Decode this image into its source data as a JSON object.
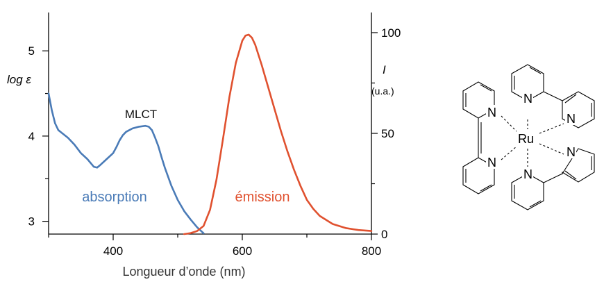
{
  "chart_data": {
    "type": "line",
    "title": "",
    "xlabel": "Longueur d’onde (nm)",
    "ylabel_left": "log ε",
    "ylabel_right_symbol": "I",
    "ylabel_right_unit": "(u.a.)",
    "xlim": [
      300,
      800
    ],
    "ylim_left": [
      2.85,
      5.45
    ],
    "ylim_right": [
      0,
      110
    ],
    "x_ticks": [
      400,
      600,
      800
    ],
    "left_ticks": [
      3,
      4,
      5
    ],
    "right_ticks": [
      0,
      50,
      100
    ],
    "annotations": {
      "mlct": "MLCT",
      "absorption": "absorption",
      "emission": "émission"
    },
    "series": [
      {
        "name": "absorption",
        "axis": "left",
        "color": "#4a7bb7",
        "x": [
          300,
          305,
          310,
          315,
          320,
          330,
          340,
          350,
          360,
          370,
          375,
          380,
          390,
          400,
          405,
          410,
          415,
          420,
          425,
          430,
          440,
          450,
          455,
          460,
          465,
          470,
          475,
          480,
          490,
          500,
          510,
          520,
          530,
          540
        ],
        "y": [
          4.5,
          4.3,
          4.15,
          4.07,
          4.04,
          3.98,
          3.9,
          3.8,
          3.73,
          3.64,
          3.63,
          3.66,
          3.73,
          3.8,
          3.87,
          3.95,
          4.01,
          4.05,
          4.07,
          4.09,
          4.11,
          4.12,
          4.11,
          4.07,
          3.98,
          3.88,
          3.75,
          3.63,
          3.42,
          3.25,
          3.12,
          3.02,
          2.93,
          2.86
        ]
      },
      {
        "name": "émission",
        "axis": "right",
        "color": "#e0512f",
        "x": [
          510,
          520,
          530,
          540,
          550,
          560,
          570,
          580,
          590,
          600,
          605,
          610,
          615,
          620,
          630,
          640,
          650,
          660,
          670,
          680,
          690,
          700,
          710,
          720,
          740,
          760,
          780,
          800
        ],
        "y": [
          0,
          0.5,
          1.5,
          4,
          12,
          27,
          47,
          68,
          85,
          96,
          98.5,
          99,
          97.5,
          94,
          84,
          73,
          62,
          51,
          41,
          32,
          24,
          17,
          12.5,
          9,
          5,
          3,
          2,
          1.5
        ]
      }
    ]
  },
  "molecule": {
    "center_atom": "Ru",
    "ligand_atom": "N"
  }
}
